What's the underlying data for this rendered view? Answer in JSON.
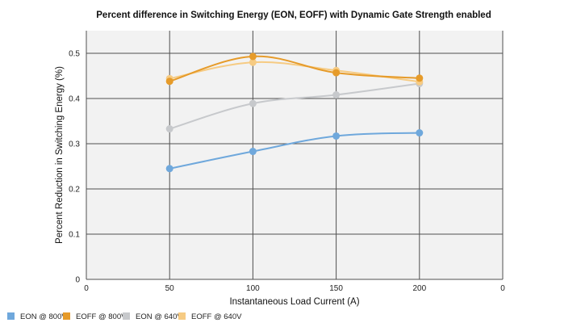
{
  "chart_data": {
    "type": "line",
    "title": "Percent difference in Switching Energy (EON, EOFF) with Dynamic Gate Strength enabled",
    "xlabel": "Instantaneous Load Current (A)",
    "ylabel": "Percent Reduction in Switching Energy (%)",
    "x_ticks": [
      "0",
      "50",
      "100",
      "150",
      "200",
      "0"
    ],
    "y_ticks": [
      "0",
      "0.1",
      "0.2",
      "0.3",
      "0.4",
      "0.5"
    ],
    "xlim": [
      0,
      250
    ],
    "ylim": [
      0,
      0.55
    ],
    "grid": true,
    "legend_position": "bottom-left",
    "x": [
      50,
      100,
      150,
      200
    ],
    "series": [
      {
        "name": "EON @ 800V",
        "color": "#6fa8dc",
        "values": [
          0.245,
          0.283,
          0.317,
          0.324
        ]
      },
      {
        "name": "EOFF @ 800V",
        "color": "#e69b2a",
        "values": [
          0.438,
          0.493,
          0.457,
          0.445
        ]
      },
      {
        "name": "EON @ 640V",
        "color": "#c7c9cc",
        "values": [
          0.333,
          0.389,
          0.408,
          0.433
        ]
      },
      {
        "name": "EOFF @ 640V",
        "color": "#f6cb83",
        "values": [
          0.444,
          0.48,
          0.462,
          0.437
        ]
      }
    ]
  }
}
